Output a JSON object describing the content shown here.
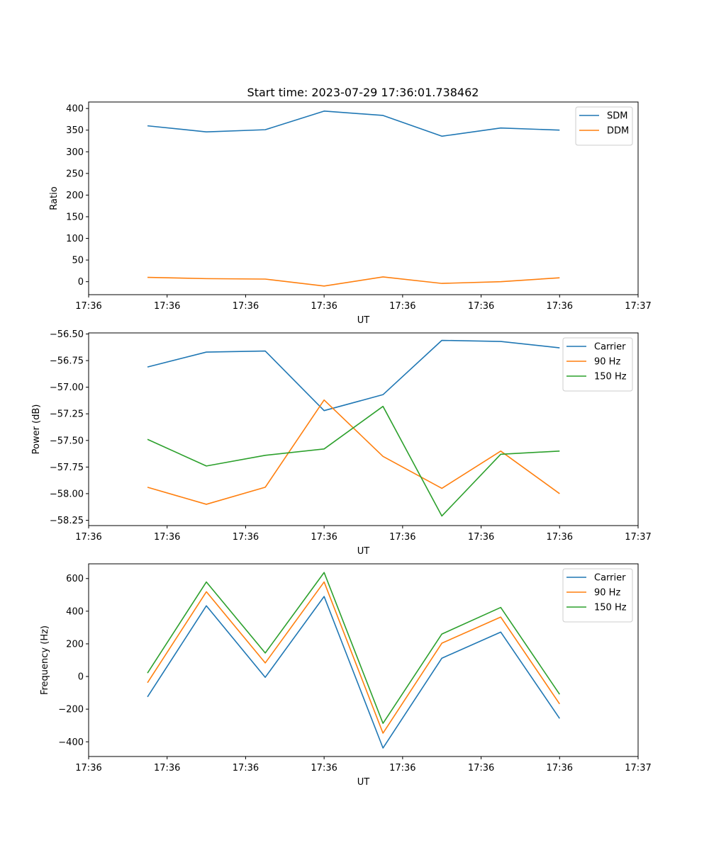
{
  "figure_title": "Start time: 2023-07-29 17:36:01.738462",
  "chart_data": [
    {
      "type": "line",
      "title": "Start time: 2023-07-29 17:36:01.738462",
      "xlabel": "UT",
      "ylabel": "Ratio",
      "x": [
        0.75,
        1.5,
        2.25,
        3.0,
        3.75,
        4.5,
        5.25,
        6.0
      ],
      "x_tick_values": [
        0,
        1,
        2,
        3,
        4,
        5,
        6,
        7
      ],
      "x_tick_labels": [
        "17:36",
        "17:36",
        "17:36",
        "17:36",
        "17:36",
        "17:36",
        "17:36",
        "17:37"
      ],
      "xlim": [
        0,
        7
      ],
      "ylim": [
        -30,
        415
      ],
      "y_tick_values": [
        0,
        50,
        100,
        150,
        200,
        250,
        300,
        350,
        400
      ],
      "y_tick_labels": [
        "0",
        "50",
        "100",
        "150",
        "200",
        "250",
        "300",
        "350",
        "400"
      ],
      "legend_position": "top-right",
      "grid": false,
      "series": [
        {
          "name": "SDM",
          "color": "#1f77b4",
          "values": [
            360,
            346,
            351,
            394,
            384,
            336,
            355,
            350
          ]
        },
        {
          "name": "DDM",
          "color": "#ff7f0e",
          "values": [
            10,
            7,
            6,
            -10,
            11,
            -4,
            0,
            9
          ]
        }
      ]
    },
    {
      "type": "line",
      "xlabel": "UT",
      "ylabel": "Power (dB)",
      "x": [
        0.75,
        1.5,
        2.25,
        3.0,
        3.75,
        4.5,
        5.25,
        6.0
      ],
      "x_tick_values": [
        0,
        1,
        2,
        3,
        4,
        5,
        6,
        7
      ],
      "x_tick_labels": [
        "17:36",
        "17:36",
        "17:36",
        "17:36",
        "17:36",
        "17:36",
        "17:36",
        "17:37"
      ],
      "xlim": [
        0,
        7
      ],
      "ylim": [
        -58.3,
        -56.49
      ],
      "y_tick_values": [
        -58.25,
        -58.0,
        -57.75,
        -57.5,
        -57.25,
        -57.0,
        -56.75,
        -56.5
      ],
      "y_tick_labels": [
        "−58.25",
        "−58.00",
        "−57.75",
        "−57.50",
        "−57.25",
        "−57.00",
        "−56.75",
        "−56.50"
      ],
      "legend_position": "top-right",
      "grid": false,
      "series": [
        {
          "name": "Carrier",
          "color": "#1f77b4",
          "values": [
            -56.81,
            -56.67,
            -56.66,
            -57.22,
            -57.07,
            -56.56,
            -56.57,
            -56.63
          ]
        },
        {
          "name": "90 Hz",
          "color": "#ff7f0e",
          "values": [
            -57.94,
            -58.1,
            -57.94,
            -57.12,
            -57.65,
            -57.95,
            -57.6,
            -58.0
          ]
        },
        {
          "name": "150 Hz",
          "color": "#2ca02c",
          "values": [
            -57.49,
            -57.74,
            -57.64,
            -57.58,
            -57.18,
            -58.21,
            -57.63,
            -57.6
          ]
        }
      ]
    },
    {
      "type": "line",
      "xlabel": "UT",
      "ylabel": "Frequency (Hz)",
      "x": [
        0.75,
        1.5,
        2.25,
        3.0,
        3.75,
        4.5,
        5.25,
        6.0
      ],
      "x_tick_values": [
        0,
        1,
        2,
        3,
        4,
        5,
        6,
        7
      ],
      "x_tick_labels": [
        "17:36",
        "17:36",
        "17:36",
        "17:36",
        "17:36",
        "17:36",
        "17:36",
        "17:37"
      ],
      "xlim": [
        0,
        7
      ],
      "ylim": [
        -490,
        690
      ],
      "y_tick_values": [
        -400,
        -200,
        0,
        200,
        400,
        600
      ],
      "y_tick_labels": [
        "−400",
        "−200",
        "0",
        "200",
        "400",
        "600"
      ],
      "legend_position": "top-right",
      "grid": false,
      "series": [
        {
          "name": "Carrier",
          "color": "#1f77b4",
          "values": [
            -125,
            433,
            -5,
            490,
            -438,
            112,
            272,
            -257
          ]
        },
        {
          "name": "90 Hz",
          "color": "#ff7f0e",
          "values": [
            -38,
            519,
            83,
            579,
            -347,
            204,
            364,
            -168
          ]
        },
        {
          "name": "150 Hz",
          "color": "#2ca02c",
          "values": [
            21,
            579,
            144,
            637,
            -287,
            260,
            423,
            -109
          ]
        }
      ]
    }
  ]
}
